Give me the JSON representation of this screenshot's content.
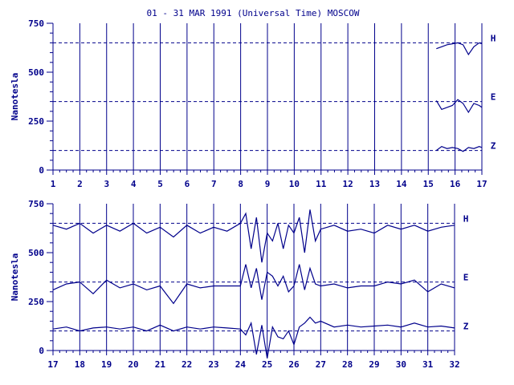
{
  "chart_data": {
    "title": "01 - 31 MAR 1991 (Universal Time) MOSCOW",
    "type": "line",
    "ylabel": "Nanotesla",
    "ylim": [
      0,
      750
    ],
    "yticks": [
      "0",
      "250",
      "500",
      "750"
    ],
    "colors": {
      "line": "#00008b",
      "axis": "#00008b",
      "text": "#00008b"
    },
    "series_names": [
      "H",
      "E",
      "Z"
    ],
    "panels": [
      {
        "x_ticks": [
          "1",
          "2",
          "3",
          "4",
          "5",
          "6",
          "7",
          "8",
          "9",
          "10",
          "11",
          "12",
          "13",
          "14",
          "15",
          "16",
          "17"
        ],
        "xlim": [
          1,
          17
        ],
        "baselines": [
          650,
          350,
          100
        ],
        "series": [
          {
            "name": "H",
            "x": [
              15.3,
              15.5,
              15.7,
              15.9,
              16.1,
              16.3,
              16.5,
              16.7,
              16.9,
              17.0
            ],
            "values": [
              620,
              630,
              640,
              645,
              650,
              640,
              590,
              630,
              650,
              645
            ]
          },
          {
            "name": "E",
            "x": [
              15.3,
              15.5,
              15.7,
              15.9,
              16.1,
              16.3,
              16.5,
              16.7,
              16.9,
              17.0
            ],
            "values": [
              355,
              310,
              320,
              330,
              360,
              340,
              295,
              340,
              330,
              320
            ]
          },
          {
            "name": "Z",
            "x": [
              15.3,
              15.5,
              15.7,
              15.9,
              16.1,
              16.3,
              16.5,
              16.7,
              16.9,
              17.0
            ],
            "values": [
              100,
              120,
              110,
              115,
              110,
              95,
              115,
              110,
              120,
              115
            ]
          }
        ]
      },
      {
        "x_ticks": [
          "17",
          "18",
          "19",
          "20",
          "21",
          "22",
          "23",
          "24",
          "25",
          "26",
          "27",
          "28",
          "29",
          "30",
          "31",
          "32"
        ],
        "xlim": [
          17,
          32
        ],
        "baselines": [
          650,
          350,
          100
        ],
        "series": [
          {
            "name": "H",
            "x": [
              17,
              17.5,
              18,
              18.5,
              19,
              19.5,
              20,
              20.5,
              21,
              21.5,
              22,
              22.5,
              23,
              23.5,
              24,
              24.2,
              24.4,
              24.6,
              24.8,
              25,
              25.2,
              25.4,
              25.6,
              25.8,
              26,
              26.2,
              26.4,
              26.6,
              26.8,
              27,
              27.5,
              28,
              28.5,
              29,
              29.5,
              30,
              30.5,
              31,
              31.5,
              32
            ],
            "values": [
              640,
              620,
              650,
              600,
              640,
              610,
              650,
              600,
              630,
              580,
              640,
              600,
              630,
              610,
              650,
              700,
              520,
              680,
              450,
              600,
              560,
              650,
              520,
              640,
              600,
              680,
              500,
              720,
              560,
              620,
              640,
              610,
              620,
              600,
              640,
              620,
              640,
              610,
              630,
              640
            ]
          },
          {
            "name": "E",
            "x": [
              17,
              17.5,
              18,
              18.5,
              19,
              19.5,
              20,
              20.5,
              21,
              21.5,
              22,
              22.5,
              23,
              23.5,
              24,
              24.2,
              24.4,
              24.6,
              24.8,
              25,
              25.2,
              25.4,
              25.6,
              25.8,
              26,
              26.2,
              26.4,
              26.6,
              26.8,
              27,
              27.5,
              28,
              28.5,
              29,
              29.5,
              30,
              30.5,
              31,
              31.5,
              32
            ],
            "values": [
              310,
              340,
              350,
              290,
              360,
              320,
              340,
              310,
              330,
              240,
              340,
              320,
              330,
              330,
              330,
              440,
              320,
              420,
              260,
              400,
              380,
              330,
              380,
              300,
              330,
              440,
              310,
              420,
              340,
              330,
              340,
              320,
              330,
              330,
              350,
              340,
              360,
              300,
              340,
              320
            ]
          },
          {
            "name": "Z",
            "x": [
              17,
              17.5,
              18,
              18.5,
              19,
              19.5,
              20,
              20.5,
              21,
              21.5,
              22,
              22.5,
              23,
              23.5,
              24,
              24.2,
              24.4,
              24.6,
              24.8,
              25,
              25.2,
              25.4,
              25.6,
              25.8,
              26,
              26.2,
              26.4,
              26.6,
              26.8,
              27,
              27.5,
              28,
              28.5,
              29,
              29.5,
              30,
              30.5,
              31,
              31.5,
              32
            ],
            "values": [
              110,
              120,
              100,
              115,
              120,
              110,
              120,
              100,
              130,
              100,
              120,
              110,
              120,
              115,
              110,
              80,
              140,
              -20,
              130,
              -40,
              120,
              70,
              60,
              100,
              30,
              120,
              140,
              170,
              140,
              150,
              120,
              130,
              120,
              125,
              130,
              120,
              140,
              120,
              125,
              115
            ]
          }
        ]
      }
    ]
  }
}
